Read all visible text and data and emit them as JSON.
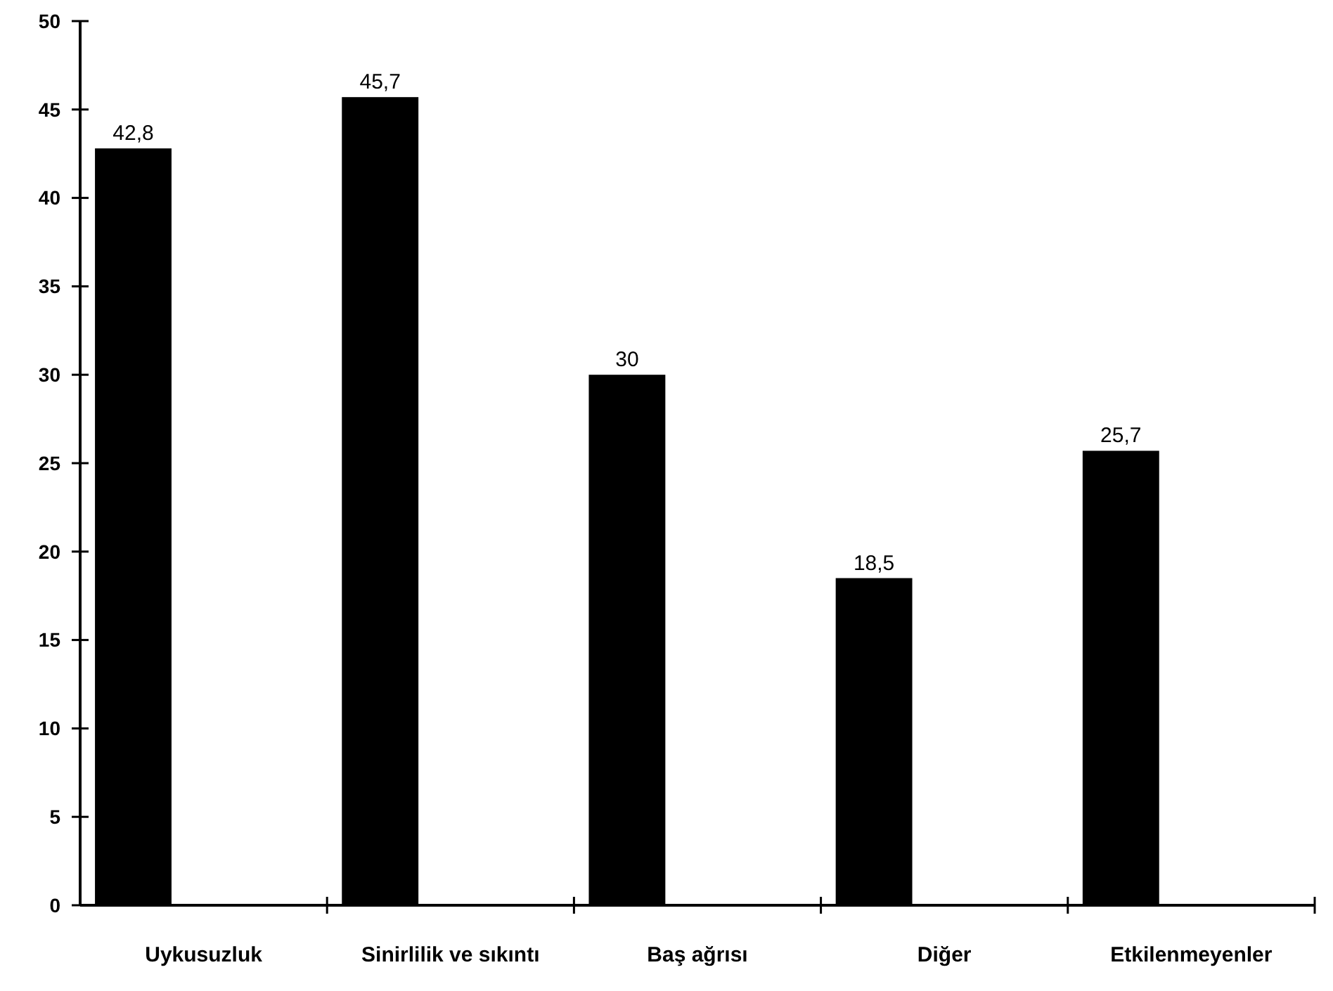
{
  "chart_data": {
    "type": "bar",
    "categories": [
      "Uykusuzluk",
      "Sinirlilik ve sıkıntı",
      "Baş ağrısı",
      "Diğer",
      "Etkilenmeyenler"
    ],
    "values": [
      42.8,
      45.7,
      30,
      18.5,
      25.7
    ],
    "color": "#000000",
    "ylim": [
      0,
      50
    ],
    "yticks": [
      0,
      5,
      10,
      15,
      20,
      25,
      30,
      35,
      40,
      45,
      50
    ],
    "value_labels": [
      "42,8",
      "45,7",
      "30",
      "18,5",
      "25,7"
    ]
  }
}
